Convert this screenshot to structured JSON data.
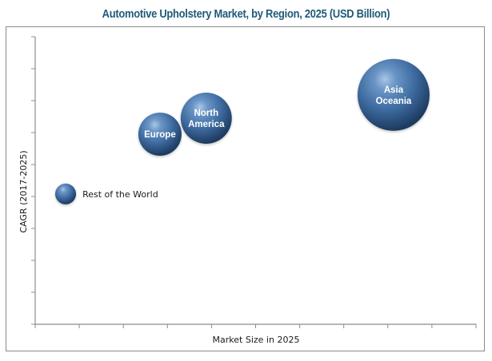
{
  "chart_data": {
    "type": "scatter",
    "subtype": "bubble",
    "title": "Automotive Upholstery Market, by Region, 2025 (USD Billion)",
    "xlabel": "Market Size in 2025",
    "ylabel": "CAGR (2017-2025)",
    "xlim": [
      0,
      10
    ],
    "ylim": [
      0,
      9
    ],
    "x_ticks_count": 11,
    "y_ticks_count": 10,
    "tick_labels_shown": false,
    "grid": false,
    "legend": "none",
    "bubble_color": "#3f6fa3",
    "series": [
      {
        "name": "Rest of the World",
        "label_lines": [
          "Rest of the World"
        ],
        "label_position": "right",
        "x": 0.69,
        "y": 4.08,
        "size": 0.29
      },
      {
        "name": "Europe",
        "label_lines": [
          "Europe"
        ],
        "label_position": "inside",
        "x": 2.83,
        "y": 5.95,
        "size": 0.6
      },
      {
        "name": "North America",
        "label_lines": [
          "North",
          "America"
        ],
        "label_position": "inside",
        "x": 3.88,
        "y": 6.45,
        "size": 0.71
      },
      {
        "name": "Asia Oceania",
        "label_lines": [
          "Asia",
          "Oceania"
        ],
        "label_position": "inside",
        "x": 8.13,
        "y": 7.18,
        "size": 1.0
      }
    ]
  }
}
